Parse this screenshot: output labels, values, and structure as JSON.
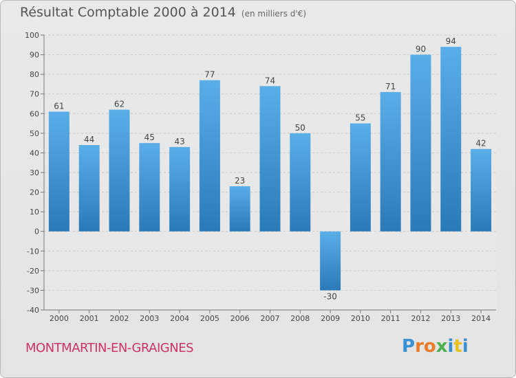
{
  "header": {
    "title": "Résultat Comptable 2000 à 2014",
    "subtitle": "(en milliers d'€)"
  },
  "footer": {
    "commune": "MONTMARTIN-EN-GRAIGNES",
    "logo_letters": [
      "P",
      "r",
      "o",
      "x",
      "i",
      "t",
      "i"
    ],
    "logo_colors": [
      "#3a8fd0",
      "#e87c2a",
      "#e87c2a",
      "#4caf50",
      "#3a8fd0",
      "#e8c020",
      "#3a8fd0"
    ]
  },
  "chart_data": {
    "type": "bar",
    "title": "Résultat Comptable 2000 à 2014",
    "subtitle": "(en milliers d'€)",
    "categories": [
      "2000",
      "2001",
      "2002",
      "2003",
      "2004",
      "2005",
      "2006",
      "2007",
      "2008",
      "2009",
      "2010",
      "2011",
      "2012",
      "2013",
      "2014"
    ],
    "values": [
      61,
      44,
      62,
      45,
      43,
      77,
      23,
      74,
      50,
      -30,
      55,
      71,
      90,
      94,
      42
    ],
    "ylim": [
      -40,
      100
    ],
    "yticks": [
      -40,
      -30,
      -20,
      -10,
      0,
      10,
      20,
      30,
      40,
      50,
      60,
      70,
      80,
      90,
      100
    ],
    "grid": true,
    "bar_color_top": "#5aaee8",
    "bar_color_bottom": "#2a7ab8"
  }
}
